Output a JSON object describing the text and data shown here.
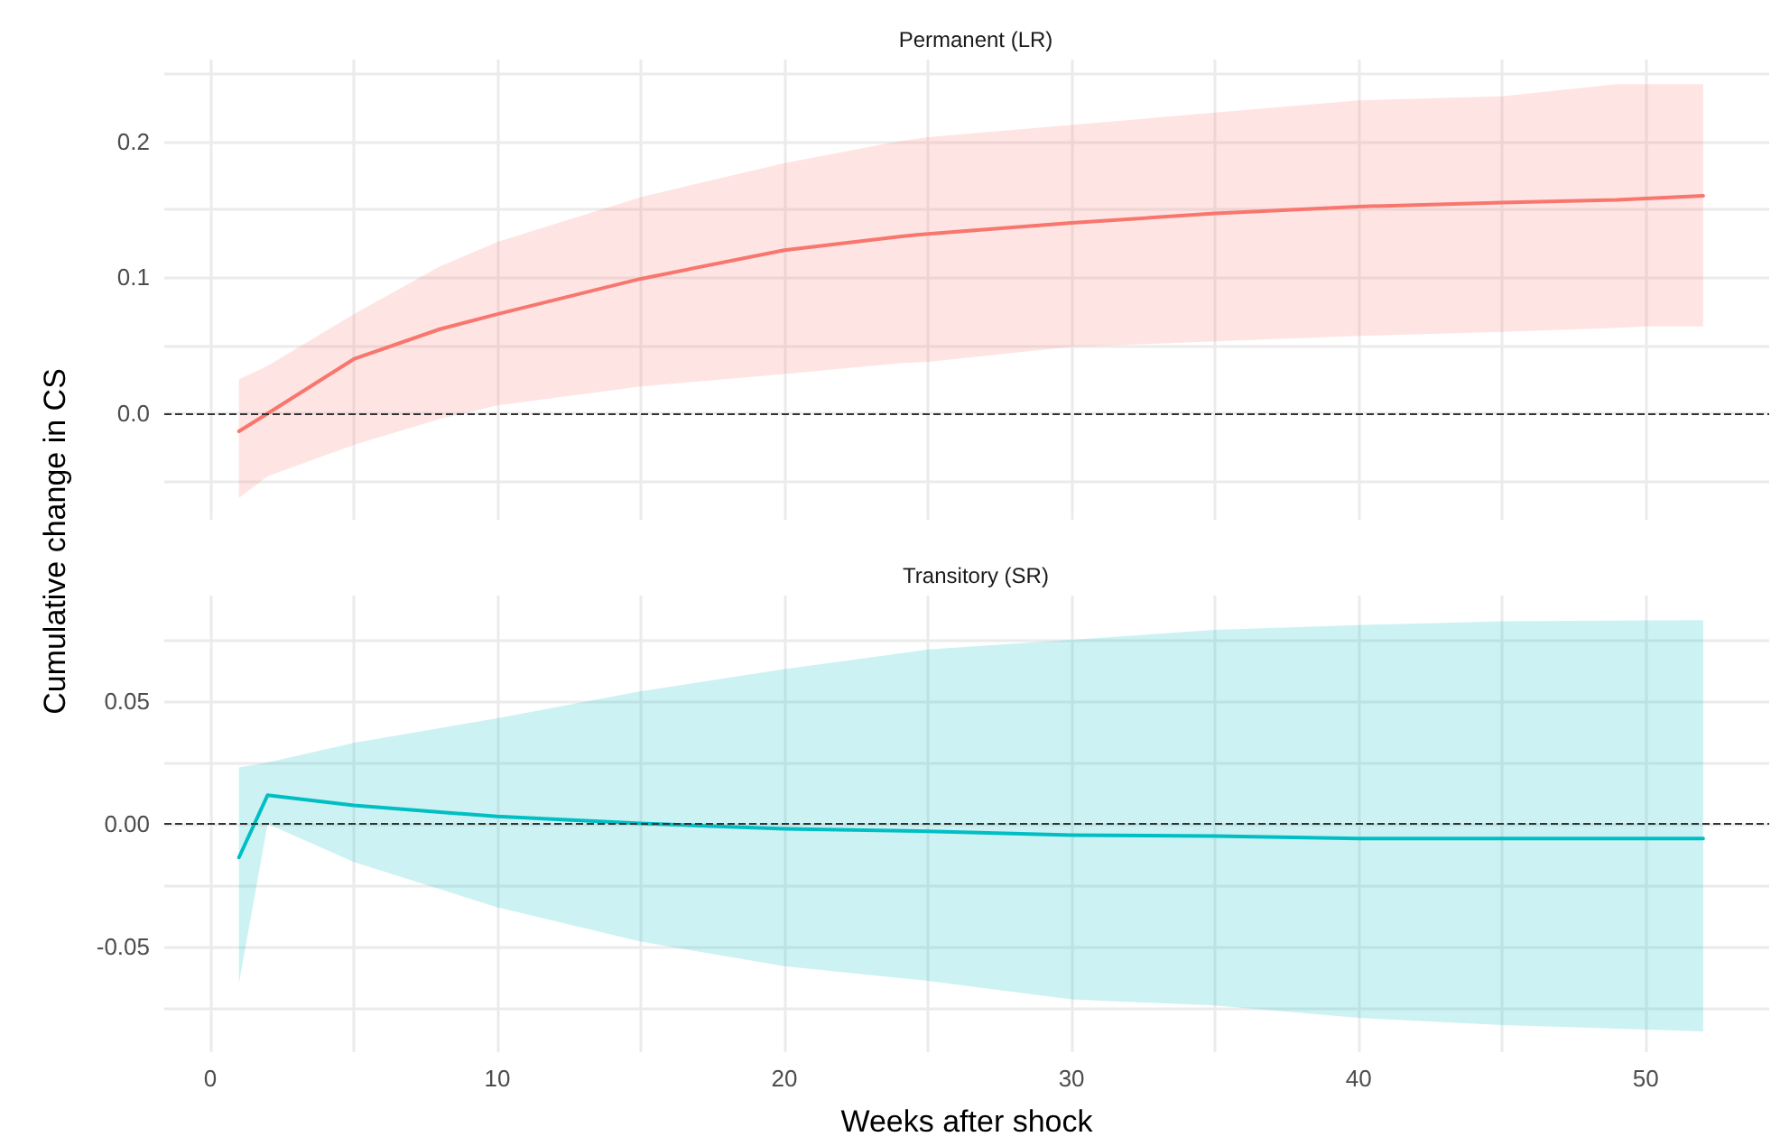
{
  "chart_data": [
    {
      "type": "line",
      "title": "Permanent (LR)",
      "x": [
        1,
        2,
        5,
        8,
        10,
        15,
        20,
        24,
        25,
        30,
        35,
        40,
        45,
        49,
        50,
        52
      ],
      "series": [
        {
          "color": "#f8766d",
          "values": [
            -0.013,
            0.0,
            0.04,
            0.062,
            0.073,
            0.099,
            0.12,
            0.13,
            0.132,
            0.14,
            0.147,
            0.152,
            0.155,
            0.157,
            0.158,
            0.16
          ],
          "lower": [
            -0.062,
            -0.046,
            -0.023,
            -0.004,
            0.006,
            0.02,
            0.029,
            0.037,
            0.038,
            0.049,
            0.053,
            0.057,
            0.06,
            0.063,
            0.064,
            0.064
          ],
          "upper": [
            0.025,
            0.035,
            0.073,
            0.108,
            0.126,
            0.159,
            0.184,
            0.2,
            0.203,
            0.212,
            0.221,
            0.23,
            0.233,
            0.242,
            0.242,
            0.242
          ]
        }
      ],
      "xlim": [
        -1.6,
        54.3
      ],
      "ylim": [
        -0.078,
        0.26
      ],
      "xticks": [
        0,
        {
          "value": 5,
          "label": null
        },
        10,
        {
          "value": 15,
          "label": null
        },
        20,
        {
          "value": 25,
          "label": null
        },
        30,
        {
          "value": 35,
          "label": null
        },
        40,
        {
          "value": 45,
          "label": null
        },
        50
      ],
      "yticks": [
        {
          "value": -0.05,
          "label": null
        },
        {
          "value": 0,
          "label": "0.0"
        },
        {
          "value": 0.05,
          "label": null
        },
        {
          "value": 0.1,
          "label": "0.1"
        },
        {
          "value": 0.15,
          "label": null
        },
        {
          "value": 0.2,
          "label": "0.2"
        },
        {
          "value": 0.25,
          "label": null
        }
      ],
      "tick_labels": "y",
      "grid": true,
      "marker": "none",
      "line_style": "solid",
      "ref_lines": [
        {
          "axis": "y",
          "value": 0,
          "color": "#333333",
          "line_style": "dashed"
        }
      ]
    },
    {
      "type": "line",
      "title": "Transitory (SR)",
      "xlabel": "Weeks after shock",
      "ylabel": "Cumulative change in CS",
      "x": [
        1,
        2,
        5,
        10,
        15,
        20,
        25,
        30,
        35,
        40,
        45,
        52
      ],
      "series": [
        {
          "color": "#00bfc4",
          "values": [
            -0.0137,
            0.0117,
            0.0075,
            0.003,
            0.0002,
            -0.002,
            -0.003,
            -0.0046,
            -0.005,
            -0.006,
            -0.006,
            -0.006
          ],
          "lower": [
            -0.065,
            0.0,
            -0.0155,
            -0.034,
            -0.048,
            -0.058,
            -0.064,
            -0.0715,
            -0.074,
            -0.079,
            -0.082,
            -0.0845
          ],
          "upper": [
            0.023,
            0.025,
            0.033,
            0.043,
            0.054,
            0.063,
            0.071,
            0.075,
            0.079,
            0.081,
            0.0825,
            0.083
          ]
        }
      ],
      "xlim": [
        -1.6,
        54.3
      ],
      "ylim": [
        -0.093,
        0.093
      ],
      "xticks": [
        0,
        {
          "value": 5,
          "label": null
        },
        10,
        {
          "value": 15,
          "label": null
        },
        20,
        {
          "value": 25,
          "label": null
        },
        30,
        {
          "value": 35,
          "label": null
        },
        40,
        {
          "value": 45,
          "label": null
        },
        50
      ],
      "yticks": [
        {
          "value": -0.075,
          "label": null
        },
        {
          "value": -0.05,
          "label": "-0.05"
        },
        {
          "value": -0.025,
          "label": null
        },
        {
          "value": 0,
          "label": "0.00"
        },
        {
          "value": 0.025,
          "label": null
        },
        {
          "value": 0.05,
          "label": "0.05"
        },
        {
          "value": 0.075,
          "label": null
        }
      ],
      "grid": true,
      "marker": "none",
      "line_style": "solid",
      "ref_lines": [
        {
          "axis": "y",
          "value": 0,
          "color": "#333333",
          "line_style": "dashed"
        }
      ]
    }
  ]
}
